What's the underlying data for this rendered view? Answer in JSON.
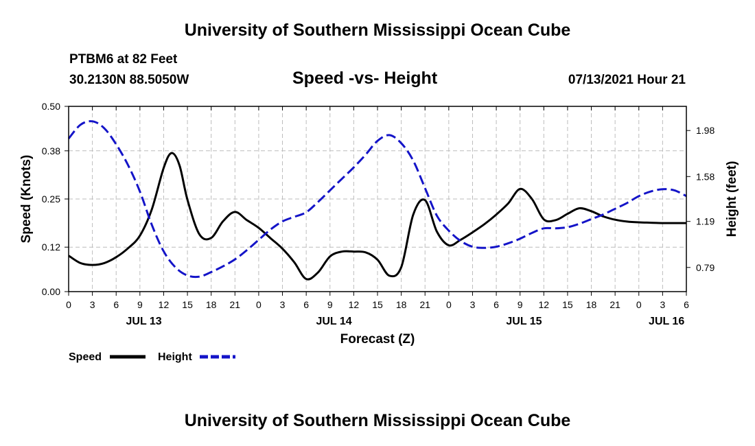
{
  "header": {
    "title": "University of Southern Mississippi Ocean Cube",
    "station": "PTBM6 at 82 Feet",
    "coords": "30.2130N  88.5050W",
    "subtitle": "Speed -vs- Height",
    "datetime": "07/13/2021 Hour 21"
  },
  "footer": {
    "title": "University of Southern Mississippi Ocean Cube"
  },
  "legend": {
    "speed_label": "Speed",
    "height_label": "Height"
  },
  "colors": {
    "speed": "#000000",
    "height": "#1414c8",
    "grid": "#bcbcbc"
  },
  "chart_data": {
    "type": "line",
    "title": "Speed -vs- Height",
    "xlabel": "Forecast (Z)",
    "ylabel": "Speed (Knots)",
    "y2label": "Height (feet)",
    "xlim": [
      0,
      78
    ],
    "ylim": [
      0,
      0.5
    ],
    "y2lim": [
      0.58,
      2.19
    ],
    "x_ticks": [
      0,
      3,
      6,
      9,
      12,
      15,
      18,
      21,
      24,
      27,
      30,
      33,
      36,
      39,
      42,
      45,
      48,
      51,
      54,
      57,
      60,
      63,
      66,
      69,
      72,
      75,
      78
    ],
    "x_tick_labels": [
      "0",
      "3",
      "6",
      "9",
      "12",
      "15",
      "18",
      "21",
      "0",
      "3",
      "6",
      "9",
      "12",
      "15",
      "18",
      "21",
      "0",
      "3",
      "6",
      "9",
      "12",
      "15",
      "18",
      "21",
      "0",
      "3",
      "6"
    ],
    "day_labels": [
      {
        "label": "JUL 13",
        "x": 9.5
      },
      {
        "label": "JUL 14",
        "x": 33.5
      },
      {
        "label": "JUL 15",
        "x": 57.5
      },
      {
        "label": "JUL 16",
        "x": 75.5
      }
    ],
    "y_ticks": [
      0.0,
      0.12,
      0.25,
      0.38,
      0.5
    ],
    "y_tick_labels": [
      "0.00",
      "0.12",
      "0.25",
      "0.38",
      "0.50"
    ],
    "y2_ticks": [
      0.79,
      1.19,
      1.58,
      1.98
    ],
    "y2_tick_labels": [
      "0.79",
      "1.19",
      "1.58",
      "1.98"
    ],
    "series": [
      {
        "name": "Speed",
        "axis": "left",
        "style": "solid",
        "x": [
          0,
          1.5,
          3,
          4.5,
          6,
          7.5,
          9,
          10.5,
          12,
          13,
          14,
          15,
          16.5,
          18,
          19.5,
          21,
          22.5,
          24,
          25.5,
          27,
          28.5,
          30,
          31.5,
          33,
          34.5,
          36,
          37.5,
          39,
          40.5,
          42,
          43.5,
          45,
          46.5,
          48,
          49.5,
          51,
          52.5,
          54,
          55.5,
          57,
          58.5,
          60,
          61.5,
          63,
          64.5,
          66,
          67.5,
          69,
          70.5,
          72,
          73.5,
          75,
          76.5,
          78
        ],
        "values": [
          0.097,
          0.077,
          0.072,
          0.077,
          0.093,
          0.117,
          0.151,
          0.222,
          0.334,
          0.374,
          0.341,
          0.248,
          0.155,
          0.145,
          0.19,
          0.215,
          0.193,
          0.172,
          0.144,
          0.116,
          0.079,
          0.034,
          0.052,
          0.095,
          0.108,
          0.108,
          0.106,
          0.086,
          0.043,
          0.066,
          0.207,
          0.247,
          0.162,
          0.125,
          0.14,
          0.16,
          0.182,
          0.208,
          0.238,
          0.277,
          0.25,
          0.195,
          0.193,
          0.21,
          0.225,
          0.217,
          0.203,
          0.194,
          0.189,
          0.187,
          0.186,
          0.185,
          0.185,
          0.185
        ]
      },
      {
        "name": "Height",
        "axis": "right",
        "style": "dashed",
        "x": [
          0,
          1.5,
          3,
          4.5,
          6,
          7.5,
          9,
          10.5,
          12,
          13.5,
          15,
          16.5,
          18,
          19.5,
          21,
          22.5,
          24,
          25.5,
          27,
          28.5,
          30,
          31.5,
          33,
          34.5,
          36,
          37.5,
          39,
          40.5,
          42,
          43.5,
          45,
          46.5,
          48,
          49.5,
          51,
          52.5,
          54,
          55.5,
          57,
          58.5,
          60,
          61.5,
          63,
          64.5,
          66,
          67.5,
          69,
          70.5,
          72,
          73.5,
          75,
          76.5,
          78
        ],
        "values": [
          1.91,
          2.03,
          2.06,
          2.0,
          1.86,
          1.68,
          1.45,
          1.16,
          0.93,
          0.79,
          0.72,
          0.71,
          0.75,
          0.8,
          0.86,
          0.94,
          1.03,
          1.12,
          1.19,
          1.23,
          1.27,
          1.36,
          1.46,
          1.56,
          1.66,
          1.77,
          1.89,
          1.94,
          1.87,
          1.72,
          1.48,
          1.24,
          1.11,
          1.02,
          0.97,
          0.96,
          0.97,
          1.0,
          1.04,
          1.09,
          1.13,
          1.13,
          1.14,
          1.17,
          1.21,
          1.25,
          1.3,
          1.35,
          1.41,
          1.45,
          1.47,
          1.46,
          1.41
        ]
      }
    ]
  }
}
